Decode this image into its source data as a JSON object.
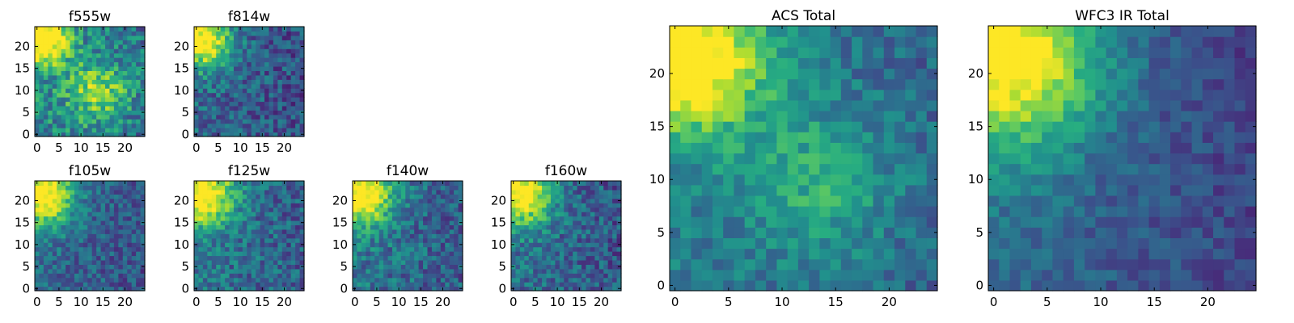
{
  "chart_data": [
    {
      "type": "heatmap",
      "title": "f555w",
      "colormap": "viridis",
      "size": 25,
      "x_ticks": [
        0,
        5,
        10,
        15,
        20
      ],
      "y_ticks": [
        0,
        5,
        10,
        15,
        20
      ],
      "xlim": [
        0,
        24
      ],
      "ylim": [
        0,
        24
      ],
      "gradient": {
        "bright_spots": [
          {
            "x": 1.5,
            "y": 21.5,
            "strength": 1.0,
            "radius": 4.0
          },
          {
            "x": 14,
            "y": 10,
            "strength": 0.55,
            "radius": 5.0
          }
        ],
        "base": 0.48,
        "noise": 0.22,
        "seed": 11
      }
    },
    {
      "type": "heatmap",
      "title": "f814w",
      "colormap": "viridis",
      "size": 25,
      "x_ticks": [
        0,
        5,
        10,
        15,
        20
      ],
      "y_ticks": [
        0,
        5,
        10,
        15,
        20
      ],
      "xlim": [
        0,
        24
      ],
      "ylim": [
        0,
        24
      ],
      "gradient": {
        "bright_spots": [
          {
            "x": 1.5,
            "y": 21.5,
            "strength": 1.0,
            "radius": 4.5
          }
        ],
        "base": 0.35,
        "noise": 0.18,
        "seed": 22
      }
    },
    {
      "type": "heatmap",
      "title": "f105w",
      "colormap": "viridis",
      "size": 25,
      "x_ticks": [
        0,
        5,
        10,
        15,
        20
      ],
      "y_ticks": [
        0,
        5,
        10,
        15,
        20
      ],
      "xlim": [
        0,
        24
      ],
      "ylim": [
        0,
        24
      ],
      "gradient": {
        "bright_spots": [
          {
            "x": 1.5,
            "y": 21.5,
            "strength": 1.0,
            "radius": 5.0
          }
        ],
        "base": 0.36,
        "noise": 0.16,
        "seed": 33
      }
    },
    {
      "type": "heatmap",
      "title": "f125w",
      "colormap": "viridis",
      "size": 25,
      "x_ticks": [
        0,
        5,
        10,
        15,
        20
      ],
      "y_ticks": [
        0,
        5,
        10,
        15,
        20
      ],
      "xlim": [
        0,
        24
      ],
      "ylim": [
        0,
        24
      ],
      "gradient": {
        "bright_spots": [
          {
            "x": 1.5,
            "y": 21.5,
            "strength": 1.0,
            "radius": 5.0
          }
        ],
        "base": 0.4,
        "noise": 0.18,
        "seed": 44
      }
    },
    {
      "type": "heatmap",
      "title": "f140w",
      "colormap": "viridis",
      "size": 25,
      "x_ticks": [
        0,
        5,
        10,
        15,
        20
      ],
      "y_ticks": [
        0,
        5,
        10,
        15,
        20
      ],
      "xlim": [
        0,
        24
      ],
      "ylim": [
        0,
        24
      ],
      "gradient": {
        "bright_spots": [
          {
            "x": 1.5,
            "y": 21.5,
            "strength": 1.0,
            "radius": 5.0
          }
        ],
        "base": 0.4,
        "noise": 0.18,
        "seed": 55
      }
    },
    {
      "type": "heatmap",
      "title": "f160w",
      "colormap": "viridis",
      "size": 25,
      "x_ticks": [
        0,
        5,
        10,
        15,
        20
      ],
      "y_ticks": [
        0,
        5,
        10,
        15,
        20
      ],
      "xlim": [
        0,
        24
      ],
      "ylim": [
        0,
        24
      ],
      "gradient": {
        "bright_spots": [
          {
            "x": 1.5,
            "y": 21.5,
            "strength": 1.0,
            "radius": 5.0
          }
        ],
        "base": 0.38,
        "noise": 0.18,
        "seed": 66
      }
    },
    {
      "type": "heatmap",
      "title": "ACS Total",
      "colormap": "viridis",
      "size": 25,
      "x_ticks": [
        0,
        5,
        10,
        15,
        20
      ],
      "y_ticks": [
        0,
        5,
        10,
        15,
        20
      ],
      "xlim": [
        0,
        24
      ],
      "ylim": [
        0,
        24
      ],
      "gradient": {
        "bright_spots": [
          {
            "x": 1.5,
            "y": 21.5,
            "strength": 1.0,
            "radius": 5.0
          },
          {
            "x": 14,
            "y": 10,
            "strength": 0.35,
            "radius": 5.0
          }
        ],
        "base": 0.42,
        "noise": 0.13,
        "seed": 77
      }
    },
    {
      "type": "heatmap",
      "title": "WFC3 IR Total",
      "colormap": "viridis",
      "size": 25,
      "x_ticks": [
        0,
        5,
        10,
        15,
        20
      ],
      "y_ticks": [
        0,
        5,
        10,
        15,
        20
      ],
      "xlim": [
        0,
        24
      ],
      "ylim": [
        0,
        24
      ],
      "gradient": {
        "bright_spots": [
          {
            "x": 1.5,
            "y": 21.5,
            "strength": 1.0,
            "radius": 6.0
          }
        ],
        "base": 0.36,
        "noise": 0.1,
        "seed": 88
      }
    }
  ]
}
